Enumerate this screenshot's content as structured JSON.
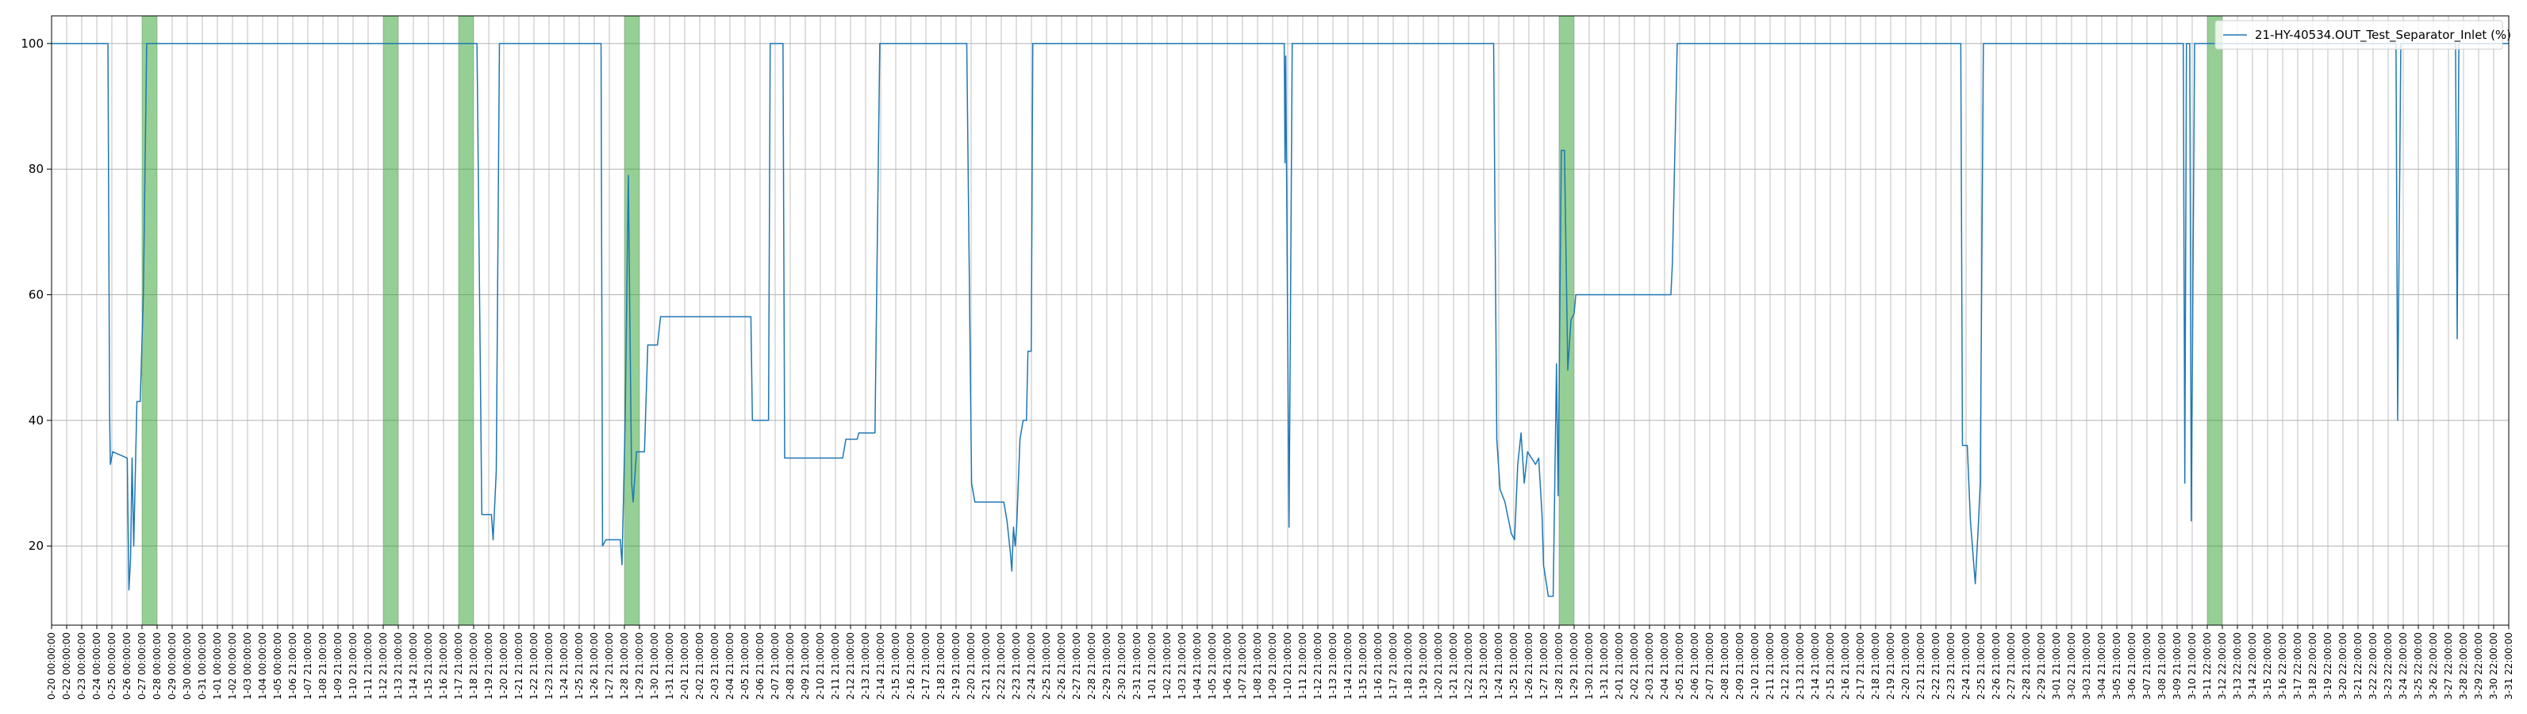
{
  "chart_data": {
    "type": "line",
    "series": [
      {
        "name": "21-HY-40534.OUT_Test_Separator_Inlet (%)",
        "color": "#1f77b4",
        "x": [
          0,
          3.74,
          3.85,
          3.9,
          4.06,
          5.02,
          5.13,
          5.24,
          5.34,
          5.45,
          5.66,
          5.88,
          6.09,
          6.31,
          28.22,
          28.54,
          29.18,
          29.29,
          29.5,
          29.71,
          36.45,
          36.55,
          36.77,
          37.73,
          37.84,
          38.05,
          38.26,
          38.48,
          38.58,
          38.8,
          39.33,
          39.55,
          40.19,
          40.4,
          46.39,
          46.49,
          47.56,
          47.67,
          48.52,
          48.63,
          52.48,
          52.69,
          53.44,
          53.55,
          54.62,
          54.94,
          60.71,
          61.03,
          61.25,
          63.17,
          63.38,
          63.6,
          63.7,
          63.81,
          63.92,
          64.02,
          64.24,
          64.45,
          64.67,
          64.77,
          64.99,
          65.09,
          81.77,
          81.82,
          81.87,
          82.09,
          82.3,
          95.66,
          95.87,
          96.09,
          96.41,
          96.83,
          97.05,
          97.26,
          97.48,
          97.69,
          97.91,
          98.44,
          98.65,
          98.87,
          98.97,
          99.29,
          99.61,
          99.83,
          99.94,
          100.15,
          100.36,
          100.58,
          100.79,
          101,
          101.11,
          107.42,
          107.52,
          107.84,
          126.65,
          126.76,
          127.08,
          127.29,
          127.61,
          127.83,
          127.94,
          128.15,
          141.41,
          141.51,
          141.62,
          141.84,
          141.94,
          142.16,
          155.52,
          155.63,
          155.84,
          159.47,
          159.58,
          159.69,
          163
        ],
        "values": [
          100,
          100,
          41,
          33,
          35,
          34,
          13,
          18,
          34,
          20,
          43,
          43,
          60,
          100,
          100,
          25,
          25,
          21,
          32,
          100,
          100,
          20,
          21,
          21,
          17,
          40,
          79,
          30,
          27,
          35,
          35,
          52,
          52,
          56.5,
          56.5,
          40,
          40,
          100,
          100,
          34,
          34,
          37,
          37,
          38,
          38,
          100,
          100,
          30,
          27,
          27,
          24,
          19,
          16,
          23,
          20,
          23,
          37,
          40,
          40,
          51,
          51,
          100,
          100,
          81,
          98,
          23,
          100,
          100,
          37,
          29,
          27,
          22,
          21,
          33,
          38,
          30,
          35,
          33,
          34,
          25,
          17,
          12,
          12,
          49,
          28,
          83,
          83,
          48,
          56,
          57,
          60,
          60,
          65,
          100,
          100,
          36,
          36,
          24,
          14,
          24,
          30,
          100,
          100,
          30,
          100,
          100,
          24,
          100,
          100,
          40,
          100,
          100,
          53,
          100,
          100
        ]
      }
    ],
    "spans": [
      {
        "start": 6,
        "end": 7
      },
      {
        "start": 22,
        "end": 23
      },
      {
        "start": 27,
        "end": 28
      },
      {
        "start": 38,
        "end": 39
      },
      {
        "start": 100,
        "end": 101
      },
      {
        "start": 143,
        "end": 144
      }
    ],
    "span_color": "#2ca02c",
    "xlim": [
      0,
      163
    ],
    "ylim": [
      7.4,
      104.4
    ],
    "yticks": [
      20,
      40,
      60,
      80,
      100
    ],
    "grid": true,
    "legend": "upper right",
    "xticks": [
      {
        "value": 0,
        "label": "0-20 00:00:00"
      },
      {
        "value": 1,
        "label": "0-22 00:00:00"
      },
      {
        "value": 2,
        "label": "0-23 00:00:00"
      },
      {
        "value": 3,
        "label": "0-24 00:00:00"
      },
      {
        "value": 4,
        "label": "0-25 00:00:00"
      },
      {
        "value": 5,
        "label": "0-26 00:00:00"
      },
      {
        "value": 6,
        "label": "0-27 00:00:00"
      },
      {
        "value": 7,
        "label": "0-28 00:00:00"
      },
      {
        "value": 8,
        "label": "0-29 00:00:00"
      },
      {
        "value": 9,
        "label": "0-30 00:00:00"
      },
      {
        "value": 10,
        "label": "0-31 00:00:00"
      },
      {
        "value": 11,
        "label": "1-01 00:00:00"
      },
      {
        "value": 12,
        "label": "1-02 00:00:00"
      },
      {
        "value": 13,
        "label": "1-03 00:00:00"
      },
      {
        "value": 14,
        "label": "1-04 00:00:00"
      },
      {
        "value": 15,
        "label": "1-05 00:00:00"
      },
      {
        "value": 16,
        "label": "1-06 21:00:00"
      },
      {
        "value": 17,
        "label": "1-07 21:00:00"
      },
      {
        "value": 18,
        "label": "1-08 21:00:00"
      },
      {
        "value": 19,
        "label": "1-09 21:00:00"
      },
      {
        "value": 20,
        "label": "1-10 21:00:00"
      },
      {
        "value": 21,
        "label": "1-11 21:00:00"
      },
      {
        "value": 22,
        "label": "1-12 21:00:00"
      },
      {
        "value": 23,
        "label": "1-13 21:00:00"
      },
      {
        "value": 24,
        "label": "1-14 21:00:00"
      },
      {
        "value": 25,
        "label": "1-15 21:00:00"
      },
      {
        "value": 26,
        "label": "1-16 21:00:00"
      },
      {
        "value": 27,
        "label": "1-17 21:00:00"
      },
      {
        "value": 28,
        "label": "1-18 21:00:00"
      },
      {
        "value": 29,
        "label": "1-19 21:00:00"
      },
      {
        "value": 30,
        "label": "1-20 21:00:00"
      },
      {
        "value": 31,
        "label": "1-21 21:00:00"
      },
      {
        "value": 32,
        "label": "1-22 21:00:00"
      },
      {
        "value": 33,
        "label": "1-23 21:00:00"
      },
      {
        "value": 34,
        "label": "1-24 21:00:00"
      },
      {
        "value": 35,
        "label": "1-25 21:00:00"
      },
      {
        "value": 36,
        "label": "1-26 21:00:00"
      },
      {
        "value": 37,
        "label": "1-27 21:00:00"
      },
      {
        "value": 38,
        "label": "1-28 21:00:00"
      },
      {
        "value": 39,
        "label": "1-29 21:00:00"
      },
      {
        "value": 40,
        "label": "1-30 21:00:00"
      },
      {
        "value": 41,
        "label": "1-31 21:00:00"
      },
      {
        "value": 42,
        "label": "2-01 21:00:00"
      },
      {
        "value": 43,
        "label": "2-02 21:00:00"
      },
      {
        "value": 44,
        "label": "2-03 21:00:00"
      },
      {
        "value": 45,
        "label": "2-04 21:00:00"
      },
      {
        "value": 46,
        "label": "2-05 21:00:00"
      },
      {
        "value": 47,
        "label": "2-06 21:00:00"
      },
      {
        "value": 48,
        "label": "2-07 21:00:00"
      },
      {
        "value": 49,
        "label": "2-08 21:00:00"
      },
      {
        "value": 50,
        "label": "2-09 21:00:00"
      },
      {
        "value": 51,
        "label": "2-10 21:00:00"
      },
      {
        "value": 52,
        "label": "2-11 21:00:00"
      },
      {
        "value": 53,
        "label": "2-12 21:00:00"
      },
      {
        "value": 54,
        "label": "2-13 21:00:00"
      },
      {
        "value": 55,
        "label": "2-14 21:00:00"
      },
      {
        "value": 56,
        "label": "2-15 21:00:00"
      },
      {
        "value": 57,
        "label": "2-16 21:00:00"
      },
      {
        "value": 58,
        "label": "2-17 21:00:00"
      },
      {
        "value": 59,
        "label": "2-18 21:00:00"
      },
      {
        "value": 60,
        "label": "2-19 21:00:00"
      },
      {
        "value": 61,
        "label": "2-20 21:00:00"
      },
      {
        "value": 62,
        "label": "2-21 21:00:00"
      },
      {
        "value": 63,
        "label": "2-22 21:00:00"
      },
      {
        "value": 64,
        "label": "2-23 21:00:00"
      },
      {
        "value": 65,
        "label": "2-24 21:00:00"
      },
      {
        "value": 66,
        "label": "2-25 21:00:00"
      },
      {
        "value": 67,
        "label": "2-26 21:00:00"
      },
      {
        "value": 68,
        "label": "2-27 21:00:00"
      },
      {
        "value": 69,
        "label": "2-28 21:00:00"
      },
      {
        "value": 70,
        "label": "2-29 21:00:00"
      },
      {
        "value": 71,
        "label": "2-30 21:00:00"
      },
      {
        "value": 72,
        "label": "2-31 21:00:00"
      },
      {
        "value": 73,
        "label": "1-01 21:00:00"
      },
      {
        "value": 74,
        "label": "1-02 21:00:00"
      },
      {
        "value": 75,
        "label": "1-03 21:00:00"
      },
      {
        "value": 76,
        "label": "1-04 21:00:00"
      },
      {
        "value": 77,
        "label": "1-05 21:00:00"
      },
      {
        "value": 78,
        "label": "1-06 21:00:00"
      },
      {
        "value": 79,
        "label": "1-07 21:00:00"
      },
      {
        "value": 80,
        "label": "1-08 21:00:00"
      },
      {
        "value": 81,
        "label": "1-09 21:00:00"
      },
      {
        "value": 82,
        "label": "1-10 21:00:00"
      },
      {
        "value": 83,
        "label": "1-11 21:00:00"
      },
      {
        "value": 84,
        "label": "1-12 21:00:00"
      },
      {
        "value": 85,
        "label": "1-13 21:00:00"
      },
      {
        "value": 86,
        "label": "1-14 21:00:00"
      },
      {
        "value": 87,
        "label": "1-15 21:00:00"
      },
      {
        "value": 88,
        "label": "1-16 21:00:00"
      },
      {
        "value": 89,
        "label": "1-17 21:00:00"
      },
      {
        "value": 90,
        "label": "1-18 21:00:00"
      },
      {
        "value": 91,
        "label": "1-19 21:00:00"
      },
      {
        "value": 92,
        "label": "1-20 21:00:00"
      },
      {
        "value": 93,
        "label": "1-21 21:00:00"
      },
      {
        "value": 94,
        "label": "1-22 21:00:00"
      },
      {
        "value": 95,
        "label": "1-23 21:00:00"
      },
      {
        "value": 96,
        "label": "1-24 21:00:00"
      },
      {
        "value": 97,
        "label": "1-25 21:00:00"
      },
      {
        "value": 98,
        "label": "1-26 21:00:00"
      },
      {
        "value": 99,
        "label": "1-27 21:00:00"
      },
      {
        "value": 100,
        "label": "1-28 21:00:00"
      },
      {
        "value": 101,
        "label": "1-29 21:00:00"
      },
      {
        "value": 102,
        "label": "1-30 21:00:00"
      },
      {
        "value": 103,
        "label": "1-31 21:00:00"
      },
      {
        "value": 104,
        "label": "2-01 21:00:00"
      },
      {
        "value": 105,
        "label": "2-02 21:00:00"
      },
      {
        "value": 106,
        "label": "2-03 21:00:00"
      },
      {
        "value": 107,
        "label": "2-04 21:00:00"
      },
      {
        "value": 108,
        "label": "2-05 21:00:00"
      },
      {
        "value": 109,
        "label": "2-06 21:00:00"
      },
      {
        "value": 110,
        "label": "2-07 21:00:00"
      },
      {
        "value": 111,
        "label": "2-08 21:00:00"
      },
      {
        "value": 112,
        "label": "2-09 21:00:00"
      },
      {
        "value": 113,
        "label": "2-10 21:00:00"
      },
      {
        "value": 114,
        "label": "2-11 21:00:00"
      },
      {
        "value": 115,
        "label": "2-12 21:00:00"
      },
      {
        "value": 116,
        "label": "2-13 21:00:00"
      },
      {
        "value": 117,
        "label": "2-14 21:00:00"
      },
      {
        "value": 118,
        "label": "2-15 21:00:00"
      },
      {
        "value": 119,
        "label": "2-16 21:00:00"
      },
      {
        "value": 120,
        "label": "2-17 21:00:00"
      },
      {
        "value": 121,
        "label": "2-18 21:00:00"
      },
      {
        "value": 122,
        "label": "2-19 21:00:00"
      },
      {
        "value": 123,
        "label": "2-20 21:00:00"
      },
      {
        "value": 124,
        "label": "2-21 21:00:00"
      },
      {
        "value": 125,
        "label": "2-22 21:00:00"
      },
      {
        "value": 126,
        "label": "2-23 21:00:00"
      },
      {
        "value": 127,
        "label": "2-24 21:00:00"
      },
      {
        "value": 128,
        "label": "2-25 21:00:00"
      },
      {
        "value": 129,
        "label": "2-26 21:00:00"
      },
      {
        "value": 130,
        "label": "2-27 21:00:00"
      },
      {
        "value": 131,
        "label": "2-28 21:00:00"
      },
      {
        "value": 132,
        "label": "2-29 21:00:00"
      },
      {
        "value": 133,
        "label": "3-01 21:00:00"
      },
      {
        "value": 134,
        "label": "3-02 21:00:00"
      },
      {
        "value": 135,
        "label": "3-03 21:00:00"
      },
      {
        "value": 136,
        "label": "3-04 21:00:00"
      },
      {
        "value": 137,
        "label": "3-05 21:00:00"
      },
      {
        "value": 138,
        "label": "3-06 21:00:00"
      },
      {
        "value": 139,
        "label": "3-07 21:00:00"
      },
      {
        "value": 140,
        "label": "3-08 21:00:00"
      },
      {
        "value": 141,
        "label": "3-09 21:00:00"
      },
      {
        "value": 142,
        "label": "3-10 21:00:00"
      },
      {
        "value": 143,
        "label": "3-11 22:00:00"
      },
      {
        "value": 144,
        "label": "3-12 22:00:00"
      },
      {
        "value": 145,
        "label": "3-13 22:00:00"
      },
      {
        "value": 146,
        "label": "3-14 22:00:00"
      },
      {
        "value": 147,
        "label": "3-15 22:00:00"
      },
      {
        "value": 148,
        "label": "3-16 22:00:00"
      },
      {
        "value": 149,
        "label": "3-17 22:00:00"
      },
      {
        "value": 150,
        "label": "3-18 22:00:00"
      },
      {
        "value": 151,
        "label": "3-19 22:00:00"
      },
      {
        "value": 152,
        "label": "3-20 22:00:00"
      },
      {
        "value": 153,
        "label": "3-21 22:00:00"
      },
      {
        "value": 154,
        "label": "3-22 22:00:00"
      },
      {
        "value": 155,
        "label": "3-23 22:00:00"
      },
      {
        "value": 156,
        "label": "3-24 22:00:00"
      },
      {
        "value": 157,
        "label": "3-25 22:00:00"
      },
      {
        "value": 158,
        "label": "3-26 22:00:00"
      },
      {
        "value": 159,
        "label": "3-27 22:00:00"
      },
      {
        "value": 160,
        "label": "3-28 22:00:00"
      },
      {
        "value": 161,
        "label": "3-29 22:00:00"
      },
      {
        "value": 162,
        "label": "3-30 22:00:00"
      },
      {
        "value": 163,
        "label": "3-31 22:00:00"
      }
    ]
  }
}
